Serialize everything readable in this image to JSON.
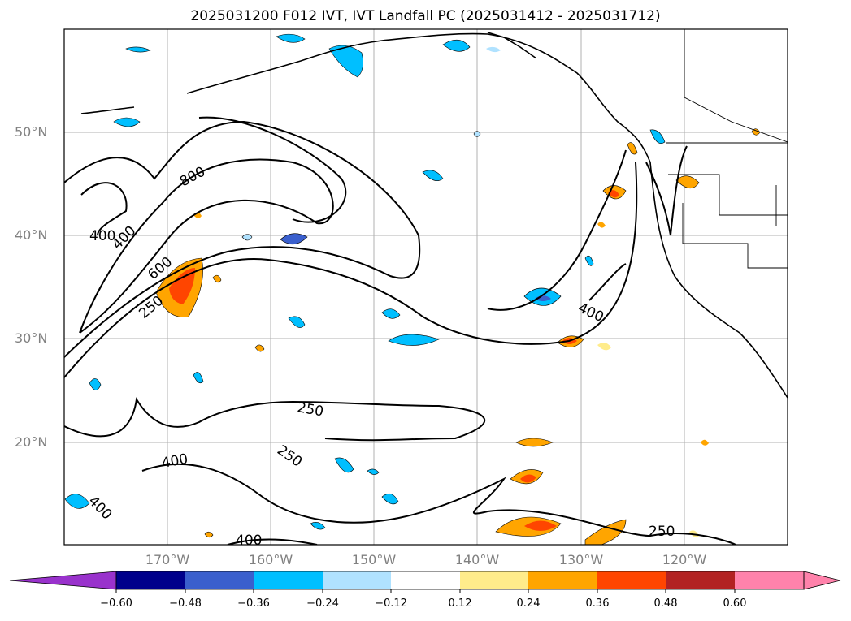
{
  "title": "2025031200 F012 IVT, IVT Landfall PC (2025031412 - 2025031712)",
  "lat_labels": [
    "50°N",
    "40°N",
    "30°N",
    "20°N"
  ],
  "lon_labels": [
    "170°W",
    "160°W",
    "150°W",
    "140°W",
    "130°W",
    "120°W"
  ],
  "contour_labels": {
    "c800": "800",
    "c400a": "400",
    "c400b": "400",
    "c600": "600",
    "c250a": "250",
    "c400c": "400",
    "c250b": "250",
    "c250c": "250",
    "c400d": "400",
    "c400e": "400",
    "c400f": "400",
    "c250d": "250"
  },
  "colorbar": {
    "ticks": [
      "−0.60",
      "−0.48",
      "−0.36",
      "−0.24",
      "−0.12",
      "0.12",
      "0.24",
      "0.36",
      "0.48",
      "0.60"
    ],
    "colors": [
      "#9932CC",
      "#00008B",
      "#3A5FCD",
      "#00BFFF",
      "#B0E2FF",
      "#FFFFFF",
      "#FFEC8B",
      "#FFA500",
      "#FF4500",
      "#B22222",
      "#FF82AB",
      "#FF82AB"
    ]
  }
}
